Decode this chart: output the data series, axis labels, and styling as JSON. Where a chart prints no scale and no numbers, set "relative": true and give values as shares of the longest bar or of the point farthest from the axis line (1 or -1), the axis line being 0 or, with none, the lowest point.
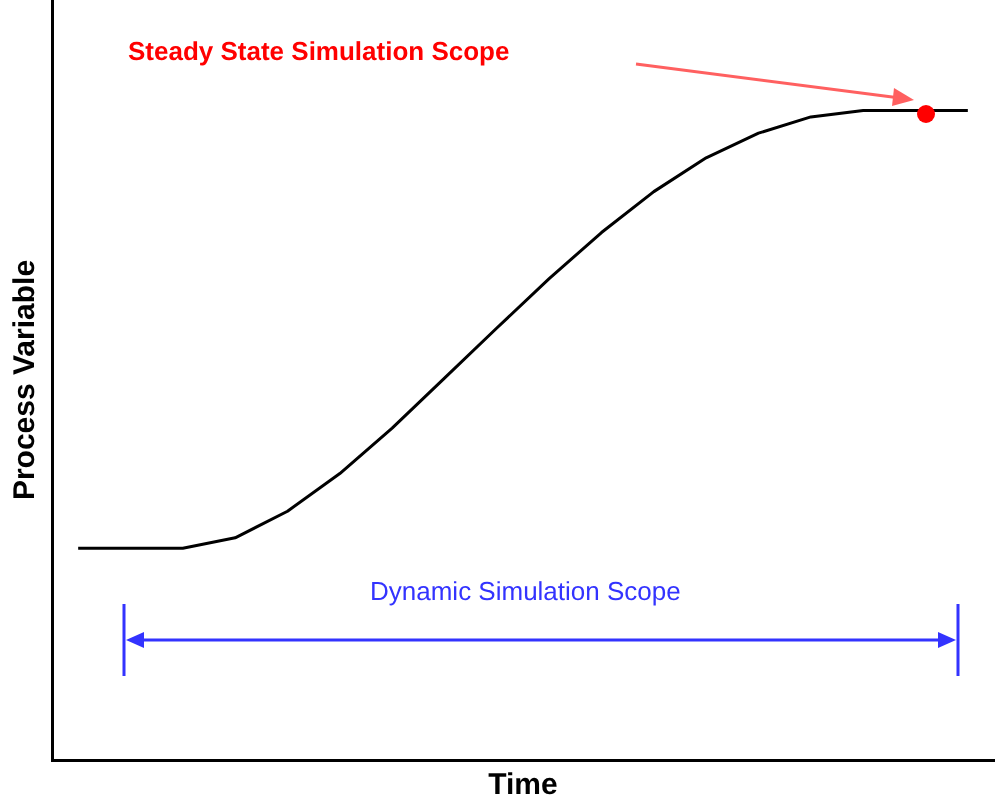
{
  "chart_data": {
    "type": "line",
    "relative": true,
    "xlabel": "Time",
    "ylabel": "Process Variable",
    "categories": [
      null,
      null,
      null,
      null,
      null,
      null,
      null,
      null,
      null,
      null,
      null,
      null,
      null,
      null,
      null,
      null,
      null,
      null
    ],
    "series": [
      {
        "color": "#000000",
        "values": [
          0.326,
          0.326,
          0.326,
          0.342,
          0.383,
          0.441,
          0.511,
          0.588,
          0.665,
          0.741,
          0.812,
          0.875,
          0.927,
          0.965,
          0.99,
          1,
          1,
          1
        ]
      }
    ],
    "annotations": [
      "Steady State Simulation Scope",
      "Dynamic Simulation Scope"
    ],
    "grid": false,
    "legend": false
  }
}
